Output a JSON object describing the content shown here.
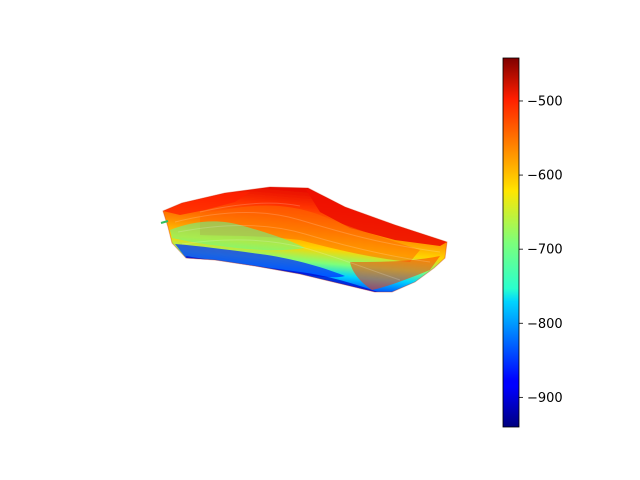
{
  "chart_data": {
    "type": "heatmap",
    "title": "",
    "xlabel": "",
    "ylabel": "",
    "axes_visible": false,
    "colormap": "jet",
    "colorbar": {
      "location": "right",
      "vmin": -940,
      "vmax": -442,
      "ticks": [
        -500,
        -600,
        -700,
        -800,
        -900
      ],
      "tick_labels": [
        "−500",
        "−600",
        "−700",
        "−800",
        "−900"
      ]
    },
    "surface": {
      "description_value_range": [
        -940,
        -442
      ],
      "regions": [
        {
          "zone": "upper-right wedge",
          "value": -480
        },
        {
          "zone": "upper-left ridge",
          "value": -530
        },
        {
          "zone": "central band",
          "value": -620
        },
        {
          "zone": "mid-left lobe",
          "value": -700
        },
        {
          "zone": "lower-left lobe",
          "value": -800
        },
        {
          "zone": "lower rim",
          "value": -880
        }
      ]
    }
  }
}
